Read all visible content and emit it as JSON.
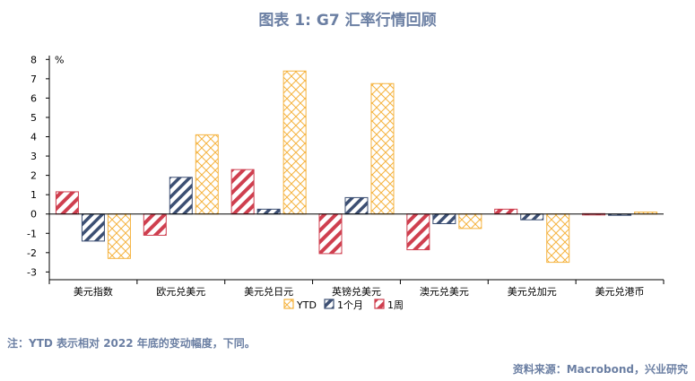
{
  "title": "图表 1:   G7 汇率行情回顾",
  "note": "注：YTD 表示相对 2022 年底的变动幅度，下同。",
  "source": "资料来源：Macrobond，兴业研究",
  "colors": {
    "ytd": "#f5b33f",
    "month": "#3c4f73",
    "week": "#cf3f4f"
  },
  "chart_data": {
    "type": "bar",
    "unit_label": "%",
    "categories": [
      "美元指数",
      "欧元兑美元",
      "美元兑日元",
      "英镑兑美元",
      "澳元兑美元",
      "美元兑加元",
      "美元兑港币"
    ],
    "yticks": [
      "8",
      "7",
      "6",
      "5",
      "4",
      "3",
      "2",
      "1",
      "0",
      "-1",
      "-2",
      "-3"
    ],
    "ylim": [
      -3.4,
      8.2
    ],
    "series": [
      {
        "name": "1周",
        "values": [
          1.15,
          -1.1,
          2.3,
          -2.05,
          -1.85,
          0.25,
          0.02
        ]
      },
      {
        "name": "1个月",
        "values": [
          -1.4,
          1.9,
          0.25,
          0.85,
          -0.5,
          -0.3,
          -0.05
        ]
      },
      {
        "name": "YTD",
        "values": [
          -2.3,
          4.1,
          7.4,
          6.75,
          -0.75,
          -2.5,
          0.1
        ]
      }
    ],
    "legend_order": [
      "YTD",
      "1个月",
      "1周"
    ]
  }
}
